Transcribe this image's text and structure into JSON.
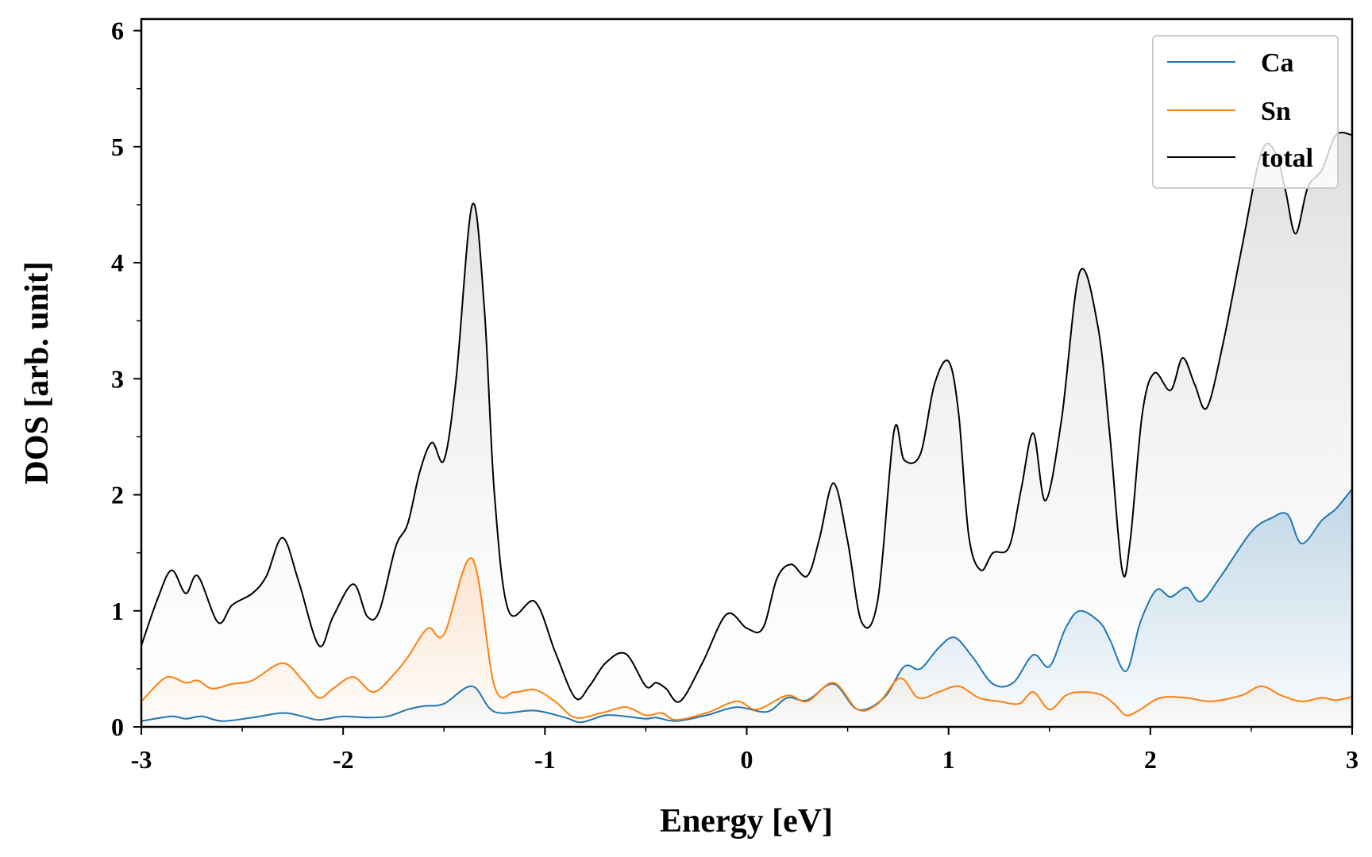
{
  "chart_data": {
    "type": "line",
    "title": "",
    "xlabel": "Energy [eV]",
    "ylabel": "DOS [arb. unit]",
    "xlim": [
      -3,
      3
    ],
    "ylim": [
      0,
      6.1
    ],
    "xticks": [
      -3,
      -2,
      -1,
      0,
      1,
      2,
      3
    ],
    "xtick_labels": [
      "-3",
      "-2",
      "-1",
      "0",
      "1",
      "2",
      "3"
    ],
    "yticks": [
      0,
      1,
      2,
      3,
      4,
      5,
      6
    ],
    "ytick_labels": [
      "0",
      "1",
      "2",
      "3",
      "4",
      "5",
      "6"
    ],
    "legend_position": "top-right",
    "series": [
      {
        "name": "Ca",
        "color": "#1f77b4",
        "x": [
          -3.0,
          -2.85,
          -2.78,
          -2.7,
          -2.6,
          -2.45,
          -2.3,
          -2.2,
          -2.12,
          -2.0,
          -1.88,
          -1.78,
          -1.68,
          -1.6,
          -1.5,
          -1.36,
          -1.25,
          -1.05,
          -0.9,
          -0.82,
          -0.7,
          -0.6,
          -0.5,
          -0.45,
          -0.35,
          -0.2,
          -0.05,
          0.1,
          0.2,
          0.3,
          0.43,
          0.55,
          0.68,
          0.78,
          0.86,
          0.95,
          1.03,
          1.12,
          1.22,
          1.32,
          1.42,
          1.5,
          1.58,
          1.65,
          1.75,
          1.8,
          1.88,
          1.95,
          2.03,
          2.1,
          2.18,
          2.25,
          2.35,
          2.5,
          2.6,
          2.68,
          2.75,
          2.85,
          2.92,
          3.0
        ],
        "y": [
          0.05,
          0.09,
          0.07,
          0.09,
          0.05,
          0.08,
          0.12,
          0.09,
          0.06,
          0.09,
          0.08,
          0.09,
          0.15,
          0.18,
          0.2,
          0.35,
          0.13,
          0.14,
          0.08,
          0.04,
          0.1,
          0.09,
          0.07,
          0.08,
          0.05,
          0.1,
          0.17,
          0.13,
          0.25,
          0.23,
          0.37,
          0.15,
          0.25,
          0.52,
          0.5,
          0.68,
          0.77,
          0.6,
          0.37,
          0.38,
          0.62,
          0.52,
          0.85,
          1.0,
          0.9,
          0.75,
          0.48,
          0.9,
          1.18,
          1.12,
          1.2,
          1.08,
          1.3,
          1.68,
          1.8,
          1.83,
          1.58,
          1.78,
          1.88,
          2.05
        ]
      },
      {
        "name": "Sn",
        "color": "#ff7f0e",
        "x": [
          -3.0,
          -2.9,
          -2.85,
          -2.78,
          -2.72,
          -2.65,
          -2.55,
          -2.45,
          -2.3,
          -2.2,
          -2.12,
          -2.05,
          -1.95,
          -1.85,
          -1.75,
          -1.68,
          -1.58,
          -1.5,
          -1.36,
          -1.25,
          -1.15,
          -1.05,
          -0.95,
          -0.85,
          -0.72,
          -0.6,
          -0.5,
          -0.42,
          -0.35,
          -0.2,
          -0.05,
          0.05,
          0.2,
          0.3,
          0.43,
          0.55,
          0.65,
          0.76,
          0.85,
          0.95,
          1.05,
          1.15,
          1.25,
          1.35,
          1.42,
          1.5,
          1.58,
          1.65,
          1.75,
          1.82,
          1.88,
          1.95,
          2.05,
          2.18,
          2.3,
          2.45,
          2.55,
          2.65,
          2.75,
          2.85,
          2.92,
          3.0
        ],
        "y": [
          0.22,
          0.4,
          0.43,
          0.38,
          0.4,
          0.33,
          0.37,
          0.4,
          0.55,
          0.4,
          0.25,
          0.33,
          0.43,
          0.3,
          0.45,
          0.6,
          0.85,
          0.8,
          1.45,
          0.35,
          0.3,
          0.32,
          0.22,
          0.08,
          0.12,
          0.17,
          0.1,
          0.12,
          0.06,
          0.12,
          0.22,
          0.15,
          0.27,
          0.22,
          0.38,
          0.15,
          0.2,
          0.42,
          0.25,
          0.3,
          0.35,
          0.25,
          0.22,
          0.2,
          0.3,
          0.15,
          0.27,
          0.3,
          0.28,
          0.2,
          0.1,
          0.15,
          0.25,
          0.25,
          0.22,
          0.27,
          0.35,
          0.27,
          0.22,
          0.25,
          0.23,
          0.26
        ]
      },
      {
        "name": "total",
        "color": "#000000",
        "x": [
          -3.0,
          -2.92,
          -2.85,
          -2.78,
          -2.72,
          -2.62,
          -2.55,
          -2.45,
          -2.38,
          -2.3,
          -2.22,
          -2.12,
          -2.05,
          -1.95,
          -1.88,
          -1.82,
          -1.74,
          -1.68,
          -1.62,
          -1.56,
          -1.5,
          -1.44,
          -1.36,
          -1.3,
          -1.25,
          -1.18,
          -1.05,
          -0.95,
          -0.85,
          -0.78,
          -0.7,
          -0.6,
          -0.5,
          -0.45,
          -0.4,
          -0.33,
          -0.22,
          -0.1,
          0.0,
          0.08,
          0.15,
          0.22,
          0.3,
          0.36,
          0.43,
          0.5,
          0.57,
          0.65,
          0.73,
          0.78,
          0.86,
          0.93,
          1.0,
          1.05,
          1.1,
          1.16,
          1.22,
          1.3,
          1.36,
          1.42,
          1.48,
          1.56,
          1.65,
          1.74,
          1.8,
          1.86,
          1.9,
          1.96,
          2.02,
          2.1,
          2.16,
          2.22,
          2.28,
          2.36,
          2.45,
          2.55,
          2.62,
          2.67,
          2.72,
          2.78,
          2.85,
          2.92,
          3.0
        ],
        "y": [
          0.7,
          1.1,
          1.35,
          1.15,
          1.3,
          0.9,
          1.05,
          1.15,
          1.3,
          1.63,
          1.25,
          0.7,
          0.95,
          1.23,
          0.95,
          1.0,
          1.55,
          1.75,
          2.2,
          2.45,
          2.3,
          3.0,
          4.5,
          3.6,
          2.0,
          1.0,
          1.08,
          0.65,
          0.25,
          0.35,
          0.55,
          0.63,
          0.35,
          0.38,
          0.33,
          0.22,
          0.55,
          0.97,
          0.85,
          0.85,
          1.28,
          1.4,
          1.3,
          1.62,
          2.1,
          1.6,
          0.9,
          1.1,
          2.55,
          2.3,
          2.35,
          2.95,
          3.15,
          2.7,
          1.65,
          1.35,
          1.5,
          1.55,
          2.05,
          2.53,
          1.95,
          2.65,
          3.92,
          3.45,
          2.5,
          1.35,
          1.6,
          2.7,
          3.05,
          2.9,
          3.18,
          2.95,
          2.75,
          3.3,
          4.1,
          4.95,
          4.95,
          4.62,
          4.25,
          4.65,
          4.8,
          5.1,
          5.1
        ]
      }
    ]
  },
  "legend": {
    "entries": [
      "Ca",
      "Sn",
      "total"
    ]
  }
}
